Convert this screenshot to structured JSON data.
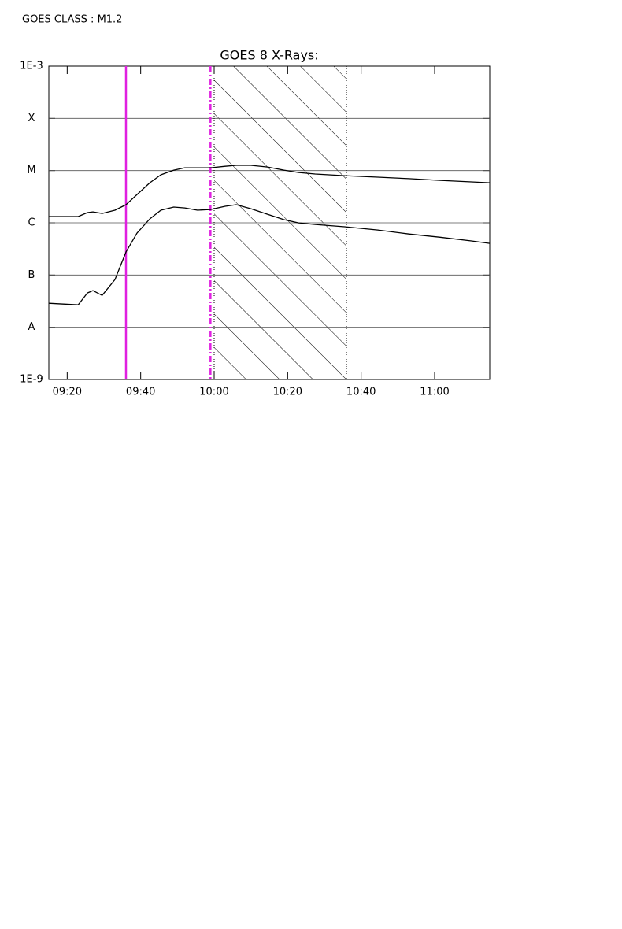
{
  "chart_data": {
    "type": "line",
    "title": "GOES 8 X-Rays:",
    "annotations": [
      "GOES CLASS : M1.2"
    ],
    "log_y": true,
    "grid": true,
    "x": [
      555,
      563,
      565.5,
      567,
      569.5,
      573,
      576,
      579,
      582.5,
      585.5,
      589,
      592,
      595.5,
      599,
      603,
      606,
      610,
      614.5,
      619,
      623,
      627.5,
      635.5,
      644.5,
      653,
      661.5,
      670,
      675
    ],
    "series": [
      {
        "color": "#000000",
        "values": [
          1.32e-06,
          1.32e-06,
          1.57e-06,
          1.62e-06,
          1.51e-06,
          1.74e-06,
          2.22e-06,
          3.48e-06,
          5.86e-06,
          8.3e-06,
          1.02e-05,
          1.13e-05,
          1.13e-05,
          1.13e-05,
          1.21e-05,
          1.26e-05,
          1.26e-05,
          1.17e-05,
          1.02e-05,
          9.2e-06,
          8.6e-06,
          8e-06,
          7.5e-06,
          7e-06,
          6.5e-06,
          6.07e-06,
          5.86e-06
        ]
      },
      {
        "color": "#000000",
        "values": [
          2.88e-08,
          2.69e-08,
          4.53e-08,
          5.03e-08,
          4.08e-08,
          8.18e-08,
          2.76e-07,
          6.34e-07,
          1.19e-06,
          1.74e-06,
          2e-06,
          1.93e-06,
          1.74e-06,
          1.8e-06,
          2.07e-06,
          2.22e-06,
          1.86e-06,
          1.46e-06,
          1.15e-06,
          9.96e-07,
          9.3e-07,
          8.4e-07,
          7.3e-07,
          6.1e-07,
          5.3e-07,
          4.5e-07,
          4.04e-07
        ]
      }
    ],
    "markers": [
      {
        "x": 576,
        "color": "#e020e0",
        "style": "solid"
      },
      {
        "x": 599,
        "color": "#e020e0",
        "style": "dashdot"
      },
      {
        "x": 600,
        "color": "#000000",
        "style": "dotted"
      },
      {
        "x": 636,
        "color": "#000000",
        "style": "dotted"
      }
    ],
    "shade": [
      600,
      636
    ],
    "xlim": [
      555,
      675
    ],
    "xticks": [
      {
        "value": 560,
        "label": "09:20"
      },
      {
        "value": 580,
        "label": "09:40"
      },
      {
        "value": 600,
        "label": "10:00"
      },
      {
        "value": 620,
        "label": "10:20"
      },
      {
        "value": 640,
        "label": "10:40"
      },
      {
        "value": 660,
        "label": "11:00"
      }
    ],
    "ylim": [
      1e-09,
      0.001
    ],
    "yticks": [
      {
        "value": 0.001,
        "label": "1E-3"
      },
      {
        "value": 0.0001,
        "label": "X"
      },
      {
        "value": 1e-05,
        "label": "M"
      },
      {
        "value": 1e-06,
        "label": "C"
      },
      {
        "value": 1e-07,
        "label": "B"
      },
      {
        "value": 1e-08,
        "label": "A"
      },
      {
        "value": 1e-09,
        "label": "1E-9"
      }
    ]
  }
}
